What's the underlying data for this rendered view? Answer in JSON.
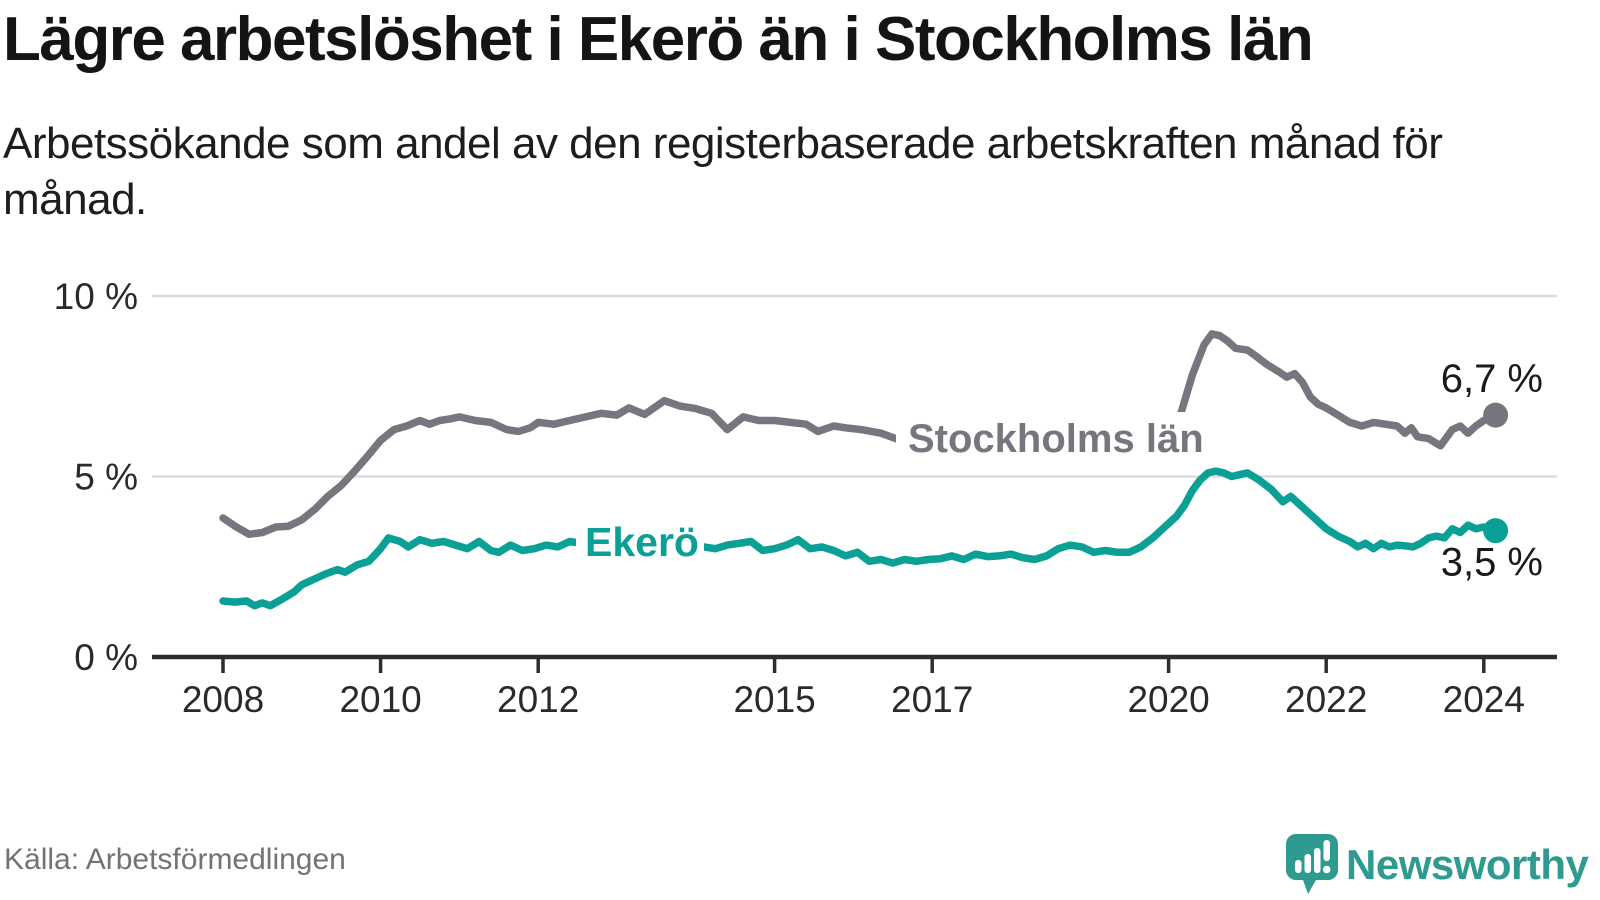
{
  "header": {
    "title": "Lägre arbetslöshet i Ekerö än i Stockholms län",
    "subtitle": "Arbetssökande som andel av den registerbaserade arbetskraften månad för månad."
  },
  "chart_data": {
    "type": "line",
    "title": "Lägre arbetslöshet i Ekerö än i Stockholms län",
    "subtitle": "Arbetssökande som andel av den registerbaserade arbetskraften månad för månad.",
    "unit": "%",
    "grid": "horizontal",
    "legend": "inline-labels",
    "x_axis": {
      "ticks": [
        2008,
        2010,
        2012,
        2015,
        2017,
        2020,
        2022,
        2024
      ],
      "range": [
        2007.9,
        2024.9
      ]
    },
    "y_axis": {
      "range": [
        0,
        10.5
      ],
      "ticks": [
        {
          "value": 0,
          "label": "0 %"
        },
        {
          "value": 5,
          "label": "5 %"
        },
        {
          "value": 10,
          "label": "10 %"
        }
      ]
    },
    "series": [
      {
        "name": "Stockholms län",
        "color": "#76767e",
        "end_value": 6.7,
        "end_label": "6,7 %",
        "points": [
          [
            2008.0,
            3.85
          ],
          [
            2008.17,
            3.6
          ],
          [
            2008.33,
            3.4
          ],
          [
            2008.5,
            3.45
          ],
          [
            2008.67,
            3.6
          ],
          [
            2008.83,
            3.62
          ],
          [
            2009.0,
            3.8
          ],
          [
            2009.17,
            4.1
          ],
          [
            2009.33,
            4.45
          ],
          [
            2009.5,
            4.75
          ],
          [
            2009.67,
            5.15
          ],
          [
            2009.83,
            5.55
          ],
          [
            2010.0,
            6.0
          ],
          [
            2010.17,
            6.3
          ],
          [
            2010.33,
            6.4
          ],
          [
            2010.5,
            6.55
          ],
          [
            2010.62,
            6.45
          ],
          [
            2010.75,
            6.55
          ],
          [
            2010.9,
            6.6
          ],
          [
            2011.0,
            6.65
          ],
          [
            2011.2,
            6.55
          ],
          [
            2011.4,
            6.5
          ],
          [
            2011.6,
            6.3
          ],
          [
            2011.75,
            6.25
          ],
          [
            2011.9,
            6.35
          ],
          [
            2012.0,
            6.5
          ],
          [
            2012.2,
            6.45
          ],
          [
            2012.4,
            6.55
          ],
          [
            2012.6,
            6.65
          ],
          [
            2012.8,
            6.75
          ],
          [
            2013.0,
            6.7
          ],
          [
            2013.15,
            6.9
          ],
          [
            2013.35,
            6.72
          ],
          [
            2013.6,
            7.1
          ],
          [
            2013.8,
            6.95
          ],
          [
            2014.0,
            6.88
          ],
          [
            2014.2,
            6.75
          ],
          [
            2014.4,
            6.3
          ],
          [
            2014.6,
            6.65
          ],
          [
            2014.8,
            6.55
          ],
          [
            2015.0,
            6.55
          ],
          [
            2015.2,
            6.5
          ],
          [
            2015.4,
            6.45
          ],
          [
            2015.55,
            6.25
          ],
          [
            2015.75,
            6.4
          ],
          [
            2015.9,
            6.35
          ],
          [
            2016.1,
            6.3
          ],
          [
            2016.35,
            6.2
          ],
          [
            2016.6,
            6.0
          ],
          [
            2016.8,
            5.95
          ],
          [
            2017.0,
            5.95
          ],
          [
            2017.3,
            6.0
          ],
          [
            2017.6,
            5.95
          ],
          [
            2018.0,
            5.9
          ],
          [
            2018.4,
            5.85
          ],
          [
            2018.8,
            5.9
          ],
          [
            2019.2,
            5.95
          ],
          [
            2019.6,
            6.05
          ],
          [
            2019.9,
            6.15
          ],
          [
            2020.05,
            6.3
          ],
          [
            2020.15,
            6.7
          ],
          [
            2020.3,
            7.8
          ],
          [
            2020.45,
            8.65
          ],
          [
            2020.55,
            8.95
          ],
          [
            2020.65,
            8.9
          ],
          [
            2020.75,
            8.75
          ],
          [
            2020.85,
            8.55
          ],
          [
            2021.0,
            8.5
          ],
          [
            2021.1,
            8.35
          ],
          [
            2021.25,
            8.1
          ],
          [
            2021.4,
            7.9
          ],
          [
            2021.5,
            7.75
          ],
          [
            2021.6,
            7.85
          ],
          [
            2021.7,
            7.6
          ],
          [
            2021.8,
            7.2
          ],
          [
            2021.9,
            7.0
          ],
          [
            2022.0,
            6.9
          ],
          [
            2022.15,
            6.7
          ],
          [
            2022.3,
            6.5
          ],
          [
            2022.45,
            6.4
          ],
          [
            2022.6,
            6.5
          ],
          [
            2022.75,
            6.45
          ],
          [
            2022.9,
            6.4
          ],
          [
            2023.0,
            6.2
          ],
          [
            2023.08,
            6.35
          ],
          [
            2023.16,
            6.1
          ],
          [
            2023.3,
            6.05
          ],
          [
            2023.45,
            5.85
          ],
          [
            2023.6,
            6.3
          ],
          [
            2023.7,
            6.4
          ],
          [
            2023.8,
            6.2
          ],
          [
            2023.9,
            6.4
          ],
          [
            2024.0,
            6.55
          ],
          [
            2024.15,
            6.7
          ]
        ]
      },
      {
        "name": "Ekerö",
        "color": "#0aa096",
        "end_value": 3.5,
        "end_label": "3,5 %",
        "points": [
          [
            2008.0,
            1.55
          ],
          [
            2008.15,
            1.52
          ],
          [
            2008.3,
            1.55
          ],
          [
            2008.4,
            1.42
          ],
          [
            2008.5,
            1.5
          ],
          [
            2008.6,
            1.42
          ],
          [
            2008.75,
            1.6
          ],
          [
            2008.9,
            1.8
          ],
          [
            2009.0,
            2.0
          ],
          [
            2009.15,
            2.15
          ],
          [
            2009.3,
            2.3
          ],
          [
            2009.45,
            2.42
          ],
          [
            2009.55,
            2.35
          ],
          [
            2009.7,
            2.55
          ],
          [
            2009.85,
            2.65
          ],
          [
            2010.0,
            3.0
          ],
          [
            2010.1,
            3.3
          ],
          [
            2010.25,
            3.2
          ],
          [
            2010.35,
            3.05
          ],
          [
            2010.5,
            3.25
          ],
          [
            2010.65,
            3.15
          ],
          [
            2010.8,
            3.2
          ],
          [
            2010.95,
            3.1
          ],
          [
            2011.1,
            3.0
          ],
          [
            2011.25,
            3.2
          ],
          [
            2011.4,
            2.95
          ],
          [
            2011.5,
            2.9
          ],
          [
            2011.65,
            3.1
          ],
          [
            2011.8,
            2.95
          ],
          [
            2011.95,
            3.0
          ],
          [
            2012.1,
            3.1
          ],
          [
            2012.25,
            3.05
          ],
          [
            2012.4,
            3.2
          ],
          [
            2012.55,
            3.15
          ],
          [
            2012.8,
            3.25
          ],
          [
            2013.0,
            3.3
          ],
          [
            2013.3,
            3.35
          ],
          [
            2013.6,
            3.4
          ],
          [
            2013.9,
            3.2
          ],
          [
            2014.1,
            3.05
          ],
          [
            2014.25,
            3.0
          ],
          [
            2014.4,
            3.1
          ],
          [
            2014.55,
            3.15
          ],
          [
            2014.7,
            3.2
          ],
          [
            2014.85,
            2.95
          ],
          [
            2015.0,
            3.0
          ],
          [
            2015.15,
            3.1
          ],
          [
            2015.3,
            3.25
          ],
          [
            2015.45,
            3.0
          ],
          [
            2015.6,
            3.05
          ],
          [
            2015.75,
            2.95
          ],
          [
            2015.9,
            2.8
          ],
          [
            2016.05,
            2.9
          ],
          [
            2016.2,
            2.65
          ],
          [
            2016.35,
            2.7
          ],
          [
            2016.5,
            2.6
          ],
          [
            2016.65,
            2.7
          ],
          [
            2016.8,
            2.65
          ],
          [
            2016.95,
            2.7
          ],
          [
            2017.1,
            2.72
          ],
          [
            2017.25,
            2.8
          ],
          [
            2017.4,
            2.7
          ],
          [
            2017.55,
            2.85
          ],
          [
            2017.7,
            2.78
          ],
          [
            2017.85,
            2.8
          ],
          [
            2018.0,
            2.85
          ],
          [
            2018.15,
            2.75
          ],
          [
            2018.3,
            2.7
          ],
          [
            2018.45,
            2.8
          ],
          [
            2018.6,
            3.0
          ],
          [
            2018.75,
            3.1
          ],
          [
            2018.9,
            3.05
          ],
          [
            2019.05,
            2.9
          ],
          [
            2019.2,
            2.95
          ],
          [
            2019.35,
            2.9
          ],
          [
            2019.5,
            2.9
          ],
          [
            2019.65,
            3.05
          ],
          [
            2019.8,
            3.3
          ],
          [
            2019.95,
            3.6
          ],
          [
            2020.1,
            3.9
          ],
          [
            2020.2,
            4.2
          ],
          [
            2020.3,
            4.6
          ],
          [
            2020.4,
            4.9
          ],
          [
            2020.5,
            5.1
          ],
          [
            2020.6,
            5.15
          ],
          [
            2020.7,
            5.1
          ],
          [
            2020.8,
            5.0
          ],
          [
            2020.9,
            5.05
          ],
          [
            2021.0,
            5.1
          ],
          [
            2021.15,
            4.9
          ],
          [
            2021.3,
            4.65
          ],
          [
            2021.45,
            4.3
          ],
          [
            2021.55,
            4.45
          ],
          [
            2021.7,
            4.15
          ],
          [
            2021.85,
            3.85
          ],
          [
            2022.0,
            3.55
          ],
          [
            2022.15,
            3.35
          ],
          [
            2022.3,
            3.2
          ],
          [
            2022.4,
            3.05
          ],
          [
            2022.5,
            3.15
          ],
          [
            2022.6,
            3.0
          ],
          [
            2022.7,
            3.15
          ],
          [
            2022.8,
            3.05
          ],
          [
            2022.9,
            3.1
          ],
          [
            2023.0,
            3.08
          ],
          [
            2023.1,
            3.05
          ],
          [
            2023.2,
            3.15
          ],
          [
            2023.3,
            3.3
          ],
          [
            2023.4,
            3.35
          ],
          [
            2023.5,
            3.3
          ],
          [
            2023.6,
            3.55
          ],
          [
            2023.7,
            3.45
          ],
          [
            2023.8,
            3.65
          ],
          [
            2023.9,
            3.55
          ],
          [
            2024.0,
            3.6
          ],
          [
            2024.15,
            3.5
          ]
        ]
      }
    ],
    "colors": {
      "axis": "#2d2d2d",
      "gridline": "#dcdcdc",
      "tick_label": "#2a2a2a",
      "value_label": "#1a1a1a"
    }
  },
  "footer": {
    "source": "Källa: Arbetsförmedlingen",
    "brand": "Newsworthy",
    "brand_color": "#2f9a8f"
  }
}
